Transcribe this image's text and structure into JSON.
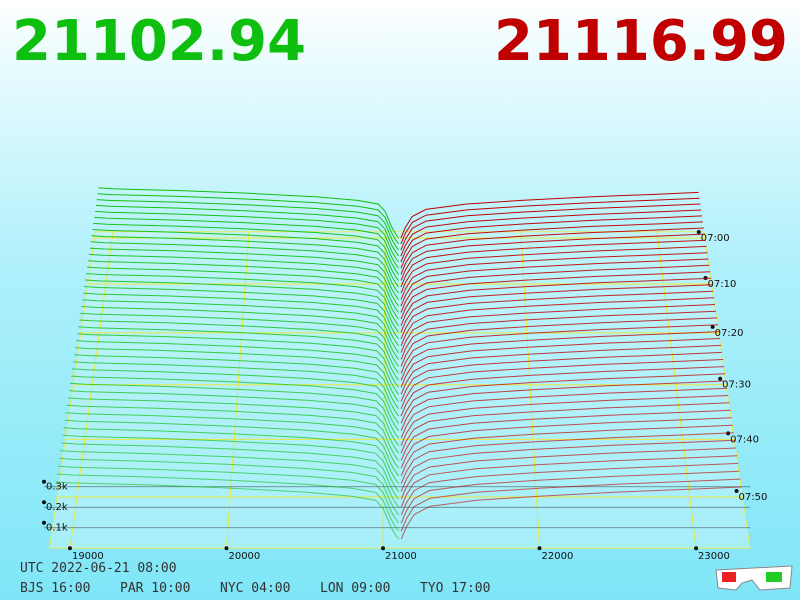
{
  "chart_data": {
    "type": "depth3d",
    "bid_price": "21102.94",
    "ask_price": "21116.99",
    "bid_color": "#0fbf0f",
    "ask_color": "#c00000",
    "xticks": [
      19000,
      20000,
      21000,
      22000,
      23000
    ],
    "xlim": [
      18870,
      23345
    ],
    "zticks": [
      {
        "value": 100,
        "label": "0.1k"
      },
      {
        "value": 200,
        "label": "0.2k"
      },
      {
        "value": 300,
        "label": "0.3k"
      }
    ],
    "time_ticks": [
      "07:00",
      "07:10",
      "07:20",
      "07:30",
      "07:40",
      "07:50"
    ],
    "bids": {
      "prices": [
        21100,
        21080,
        21050,
        21000,
        20950,
        20800,
        20500,
        20000,
        19500,
        19000,
        18900
      ],
      "sizes": [
        0,
        20,
        60,
        150,
        190,
        210,
        230,
        250,
        265,
        275,
        280
      ]
    },
    "asks": {
      "prices": [
        21117,
        21150,
        21200,
        21300,
        21600,
        22000,
        22500,
        23000,
        23300
      ],
      "sizes": [
        0,
        60,
        120,
        160,
        190,
        210,
        230,
        245,
        255
      ]
    },
    "utc": "UTC 2022-06-21 08:00",
    "cities": [
      "BJS 16:00",
      "PAR 10:00",
      "NYC 04:00",
      "LON 09:00",
      "TYO 17:00"
    ]
  }
}
